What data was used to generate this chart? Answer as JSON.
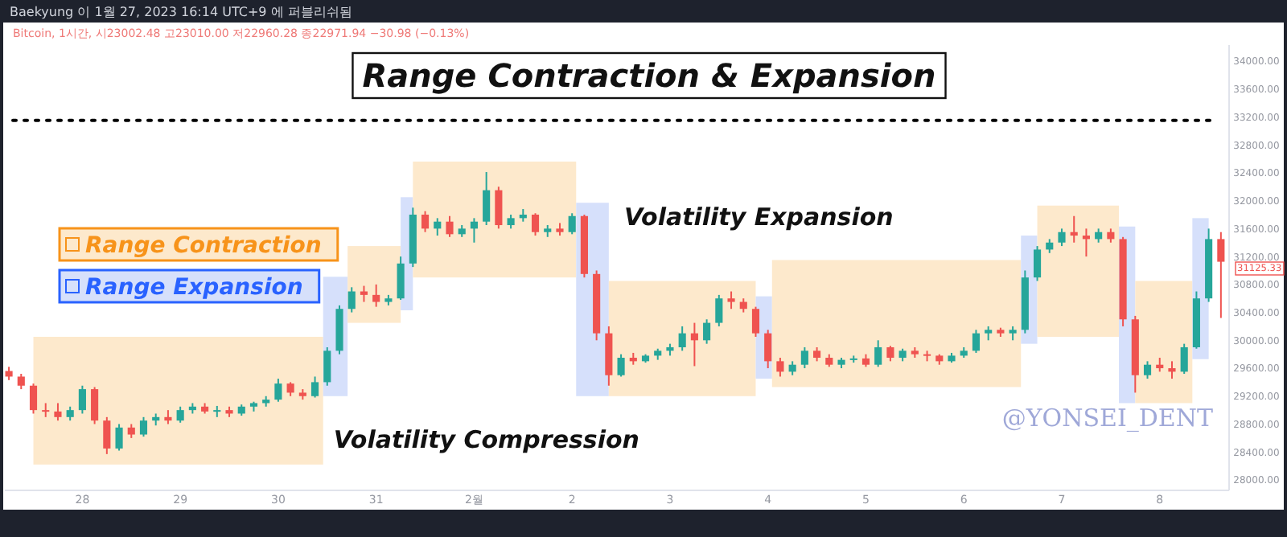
{
  "chart_data": {
    "type": "candlestick",
    "title": "Range Contraction & Expansion",
    "annotations": [
      "Baekyung 이 1월 27, 2023 16:14 UTC+9 에 퍼블리쉬됨",
      "Bitcoin, 1시간, 시23002.48 고23010.00 저22960.28 종22971.94 −30.98 (−0.13%)",
      "@YONSEI_DENT",
      {
        "text": "Volatility Compression",
        "x": "2023-01-30T12:00",
        "y": 28600
      },
      "Volatility Expansion",
      "31125.33"
    ],
    "x": [
      "2023-01-27T06:00",
      "2023-01-27T09:00",
      "2023-01-27T12:00",
      "2023-01-27T15:00",
      "2023-01-27T18:00",
      "2023-01-27T21:00",
      "2023-01-28T00:00",
      "2023-01-28T03:00",
      "2023-01-28T06:00",
      "2023-01-28T09:00",
      "2023-01-28T12:00",
      "2023-01-28T15:00",
      "2023-01-28T18:00",
      "2023-01-28T21:00",
      "2023-01-29T00:00",
      "2023-01-29T03:00",
      "2023-01-29T06:00",
      "2023-01-29T09:00",
      "2023-01-29T12:00",
      "2023-01-29T15:00",
      "2023-01-29T18:00",
      "2023-01-29T21:00",
      "2023-01-30T00:00",
      "2023-01-30T03:00",
      "2023-01-30T06:00",
      "2023-01-30T09:00",
      "2023-01-30T12:00",
      "2023-01-30T15:00",
      "2023-01-30T18:00",
      "2023-01-30T21:00",
      "2023-01-31T00:00",
      "2023-01-31T03:00",
      "2023-01-31T06:00",
      "2023-01-31T09:00",
      "2023-01-31T12:00",
      "2023-01-31T15:00",
      "2023-01-31T18:00",
      "2023-01-31T21:00",
      "2023-02-01T00:00",
      "2023-02-01T03:00",
      "2023-02-01T06:00",
      "2023-02-01T09:00",
      "2023-02-01T12:00",
      "2023-02-01T15:00",
      "2023-02-01T18:00",
      "2023-02-01T21:00",
      "2023-02-02T00:00",
      "2023-02-02T03:00",
      "2023-02-02T06:00",
      "2023-02-02T09:00",
      "2023-02-02T12:00",
      "2023-02-02T15:00",
      "2023-02-02T18:00",
      "2023-02-02T21:00",
      "2023-02-03T00:00",
      "2023-02-03T03:00",
      "2023-02-03T06:00",
      "2023-02-03T09:00",
      "2023-02-03T12:00",
      "2023-02-03T15:00",
      "2023-02-03T18:00",
      "2023-02-03T21:00",
      "2023-02-04T00:00",
      "2023-02-04T03:00",
      "2023-02-04T06:00",
      "2023-02-04T09:00",
      "2023-02-04T12:00",
      "2023-02-04T15:00",
      "2023-02-04T18:00",
      "2023-02-04T21:00",
      "2023-02-05T00:00",
      "2023-02-05T03:00",
      "2023-02-05T06:00",
      "2023-02-05T09:00",
      "2023-02-05T12:00",
      "2023-02-05T15:00",
      "2023-02-05T18:00",
      "2023-02-05T21:00",
      "2023-02-06T00:00",
      "2023-02-06T03:00",
      "2023-02-06T06:00",
      "2023-02-06T09:00",
      "2023-02-06T12:00",
      "2023-02-06T15:00",
      "2023-02-06T18:00",
      "2023-02-06T21:00",
      "2023-02-07T00:00",
      "2023-02-07T03:00",
      "2023-02-07T06:00",
      "2023-02-07T09:00",
      "2023-02-07T12:00",
      "2023-02-07T15:00",
      "2023-02-07T18:00",
      "2023-02-07T21:00",
      "2023-02-08T00:00",
      "2023-02-08T03:00",
      "2023-02-08T06:00",
      "2023-02-08T09:00",
      "2023-02-08T12:00",
      "2023-02-08T15:00"
    ],
    "ohlc": [
      [
        29560,
        29620,
        29430,
        29480
      ],
      [
        29480,
        29520,
        29300,
        29350
      ],
      [
        29350,
        29380,
        28950,
        29000
      ],
      [
        29000,
        29100,
        28900,
        28980
      ],
      [
        28980,
        29100,
        28850,
        28900
      ],
      [
        28900,
        29050,
        28850,
        29000
      ],
      [
        29000,
        29350,
        28950,
        29300
      ],
      [
        29300,
        29330,
        28800,
        28850
      ],
      [
        28850,
        28900,
        28370,
        28450
      ],
      [
        28450,
        28800,
        28420,
        28750
      ],
      [
        28750,
        28800,
        28600,
        28650
      ],
      [
        28650,
        28900,
        28620,
        28850
      ],
      [
        28850,
        28950,
        28780,
        28900
      ],
      [
        28900,
        29000,
        28800,
        28850
      ],
      [
        28850,
        29050,
        28820,
        29000
      ],
      [
        29000,
        29100,
        28950,
        29050
      ],
      [
        29050,
        29100,
        28950,
        28980
      ],
      [
        28980,
        29060,
        28900,
        29000
      ],
      [
        29000,
        29050,
        28900,
        28950
      ],
      [
        28950,
        29080,
        28920,
        29050
      ],
      [
        29050,
        29120,
        28980,
        29100
      ],
      [
        29100,
        29200,
        29050,
        29150
      ],
      [
        29150,
        29450,
        29120,
        29380
      ],
      [
        29380,
        29400,
        29200,
        29250
      ],
      [
        29250,
        29300,
        29150,
        29200
      ],
      [
        29200,
        29480,
        29180,
        29400
      ],
      [
        29400,
        29900,
        29350,
        29850
      ],
      [
        29850,
        30500,
        29800,
        30450
      ],
      [
        30450,
        30760,
        30400,
        30700
      ],
      [
        30700,
        30780,
        30550,
        30650
      ],
      [
        30650,
        30800,
        30480,
        30550
      ],
      [
        30550,
        30650,
        30500,
        30600
      ],
      [
        30600,
        31200,
        30580,
        31100
      ],
      [
        31100,
        31900,
        31050,
        31800
      ],
      [
        31800,
        31850,
        31550,
        31600
      ],
      [
        31600,
        31750,
        31500,
        31700
      ],
      [
        31700,
        31780,
        31480,
        31520
      ],
      [
        31520,
        31650,
        31480,
        31600
      ],
      [
        31600,
        31750,
        31400,
        31700
      ],
      [
        31700,
        32410,
        31650,
        32150
      ],
      [
        32150,
        32200,
        31600,
        31650
      ],
      [
        31650,
        31800,
        31600,
        31750
      ],
      [
        31750,
        31880,
        31700,
        31800
      ],
      [
        31800,
        31820,
        31500,
        31550
      ],
      [
        31550,
        31650,
        31480,
        31600
      ],
      [
        31600,
        31680,
        31500,
        31550
      ],
      [
        31550,
        31820,
        31520,
        31780
      ],
      [
        31780,
        31800,
        30900,
        30950
      ],
      [
        30950,
        31000,
        30000,
        30100
      ],
      [
        30100,
        30200,
        29350,
        29500
      ],
      [
        29500,
        29800,
        29480,
        29750
      ],
      [
        29750,
        29820,
        29650,
        29700
      ],
      [
        29700,
        29800,
        29680,
        29780
      ],
      [
        29780,
        29880,
        29720,
        29850
      ],
      [
        29850,
        29950,
        29780,
        29900
      ],
      [
        29900,
        30200,
        29850,
        30100
      ],
      [
        30100,
        30250,
        29630,
        30000
      ],
      [
        30000,
        30300,
        29950,
        30250
      ],
      [
        30250,
        30650,
        30200,
        30600
      ],
      [
        30600,
        30700,
        30450,
        30550
      ],
      [
        30550,
        30600,
        30400,
        30450
      ],
      [
        30450,
        30480,
        30050,
        30100
      ],
      [
        30100,
        30150,
        29600,
        29700
      ],
      [
        29700,
        29750,
        29480,
        29550
      ],
      [
        29550,
        29700,
        29500,
        29650
      ],
      [
        29650,
        29900,
        29600,
        29850
      ],
      [
        29850,
        29900,
        29700,
        29750
      ],
      [
        29750,
        29800,
        29620,
        29650
      ],
      [
        29650,
        29750,
        29600,
        29720
      ],
      [
        29720,
        29780,
        29680,
        29740
      ],
      [
        29740,
        29800,
        29620,
        29650
      ],
      [
        29650,
        30000,
        29620,
        29900
      ],
      [
        29900,
        29920,
        29700,
        29750
      ],
      [
        29750,
        29880,
        29700,
        29850
      ],
      [
        29850,
        29900,
        29750,
        29800
      ],
      [
        29800,
        29850,
        29700,
        29780
      ],
      [
        29780,
        29800,
        29650,
        29700
      ],
      [
        29700,
        29820,
        29680,
        29780
      ],
      [
        29780,
        29900,
        29750,
        29850
      ],
      [
        29850,
        30150,
        29820,
        30100
      ],
      [
        30100,
        30200,
        30000,
        30150
      ],
      [
        30150,
        30180,
        30050,
        30100
      ],
      [
        30100,
        30200,
        30000,
        30150
      ],
      [
        30150,
        31000,
        30100,
        30900
      ],
      [
        30900,
        31350,
        30850,
        31300
      ],
      [
        31300,
        31450,
        31250,
        31400
      ],
      [
        31400,
        31600,
        31350,
        31550
      ],
      [
        31550,
        31780,
        31400,
        31500
      ],
      [
        31500,
        31600,
        31200,
        31450
      ],
      [
        31450,
        31600,
        31400,
        31550
      ],
      [
        31550,
        31600,
        31400,
        31450
      ],
      [
        31450,
        31480,
        30200,
        30300
      ],
      [
        30300,
        30350,
        29250,
        29500
      ],
      [
        29500,
        29700,
        29450,
        29650
      ],
      [
        29650,
        29750,
        29550,
        29600
      ],
      [
        29600,
        29700,
        29450,
        29550
      ],
      [
        29550,
        29950,
        29520,
        29900
      ],
      [
        29900,
        30700,
        29880,
        30600
      ],
      [
        30600,
        31600,
        30550,
        31450
      ],
      [
        31450,
        31550,
        30320,
        31125.33
      ]
    ],
    "xlim": [
      "2023-01-27T05:00",
      "2023-02-08T17:00"
    ],
    "xticks": [
      {
        "value": "2023-01-28",
        "label": "28"
      },
      {
        "value": "2023-01-29",
        "label": "29"
      },
      {
        "value": "2023-01-30",
        "label": "30"
      },
      {
        "value": "2023-01-31",
        "label": "31"
      },
      {
        "value": "2023-02-01",
        "label": "2월"
      },
      {
        "value": "2023-02-02",
        "label": "2"
      },
      {
        "value": "2023-02-03",
        "label": "3"
      },
      {
        "value": "2023-02-04",
        "label": "4"
      },
      {
        "value": "2023-02-05",
        "label": "5"
      },
      {
        "value": "2023-02-06",
        "label": "6"
      },
      {
        "value": "2023-02-07",
        "label": "7"
      },
      {
        "value": "2023-02-08",
        "label": "8"
      }
    ],
    "ylim": [
      27850,
      34230
    ],
    "yticks": [
      {
        "value": 28000,
        "label": "28000.00"
      },
      {
        "value": 28400,
        "label": "28400.00"
      },
      {
        "value": 28800,
        "label": "28800.00"
      },
      {
        "value": 29200,
        "label": "29200.00"
      },
      {
        "value": 29600,
        "label": "29600.00"
      },
      {
        "value": 30000,
        "label": "30000.00"
      },
      {
        "value": 30400,
        "label": "30400.00"
      },
      {
        "value": 30800,
        "label": "30800.00"
      },
      {
        "value": 31200,
        "label": "31200.00"
      },
      {
        "value": 31600,
        "label": "31600.00"
      },
      {
        "value": 32000,
        "label": "32000.00"
      },
      {
        "value": 32400,
        "label": "32400.00"
      },
      {
        "value": 32800,
        "label": "32800.00"
      },
      {
        "value": 33200,
        "label": "33200.00"
      },
      {
        "value": 33600,
        "label": "33600.00"
      },
      {
        "value": 34000,
        "label": "34000.00"
      }
    ],
    "ref_lines": [
      {
        "axis": "y",
        "value": 33150,
        "color": "#000000",
        "line_style": "dotted"
      }
    ],
    "bands": [
      {
        "axis": "x",
        "from": "2023-01-27T12:00",
        "to": "2023-01-30T11:00",
        "color": "#fde9cc",
        "label": "Range Contraction"
      },
      {
        "axis": "x",
        "from": "2023-01-30T11:00",
        "to": "2023-01-30T17:00",
        "color": "#d6e0fb",
        "label": "Range Expansion"
      },
      {
        "axis": "x",
        "from": "2023-01-30T17:00",
        "to": "2023-01-31T06:00",
        "color": "#fde9cc"
      },
      {
        "axis": "x",
        "from": "2023-01-31T06:00",
        "to": "2023-01-31T09:00",
        "color": "#d6e0fb"
      },
      {
        "axis": "x",
        "from": "2023-01-31T09:00",
        "to": "2023-02-02T01:00",
        "color": "#fde9cc"
      },
      {
        "axis": "x",
        "from": "2023-02-02T01:00",
        "to": "2023-02-02T09:00",
        "color": "#d6e0fb"
      },
      {
        "axis": "x",
        "from": "2023-02-02T09:00",
        "to": "2023-02-03T21:00",
        "color": "#fde9cc"
      },
      {
        "axis": "x",
        "from": "2023-02-03T21:00",
        "to": "2023-02-04T01:00",
        "color": "#d6e0fb"
      },
      {
        "axis": "x",
        "from": "2023-02-04T01:00",
        "to": "2023-02-06T14:00",
        "color": "#fde9cc"
      },
      {
        "axis": "x",
        "from": "2023-02-06T14:00",
        "to": "2023-02-06T18:00",
        "color": "#d6e0fb"
      },
      {
        "axis": "x",
        "from": "2023-02-06T18:00",
        "to": "2023-02-07T14:00",
        "color": "#fde9cc"
      },
      {
        "axis": "x",
        "from": "2023-02-07T14:00",
        "to": "2023-02-07T18:00",
        "color": "#d6e0fb"
      },
      {
        "axis": "x",
        "from": "2023-02-07T18:00",
        "to": "2023-02-08T08:00",
        "color": "#fde9cc"
      },
      {
        "axis": "x",
        "from": "2023-02-08T08:00",
        "to": "2023-02-08T12:00",
        "color": "#d6e0fb"
      }
    ],
    "legend": "left",
    "tick_labels": "xy"
  }
}
